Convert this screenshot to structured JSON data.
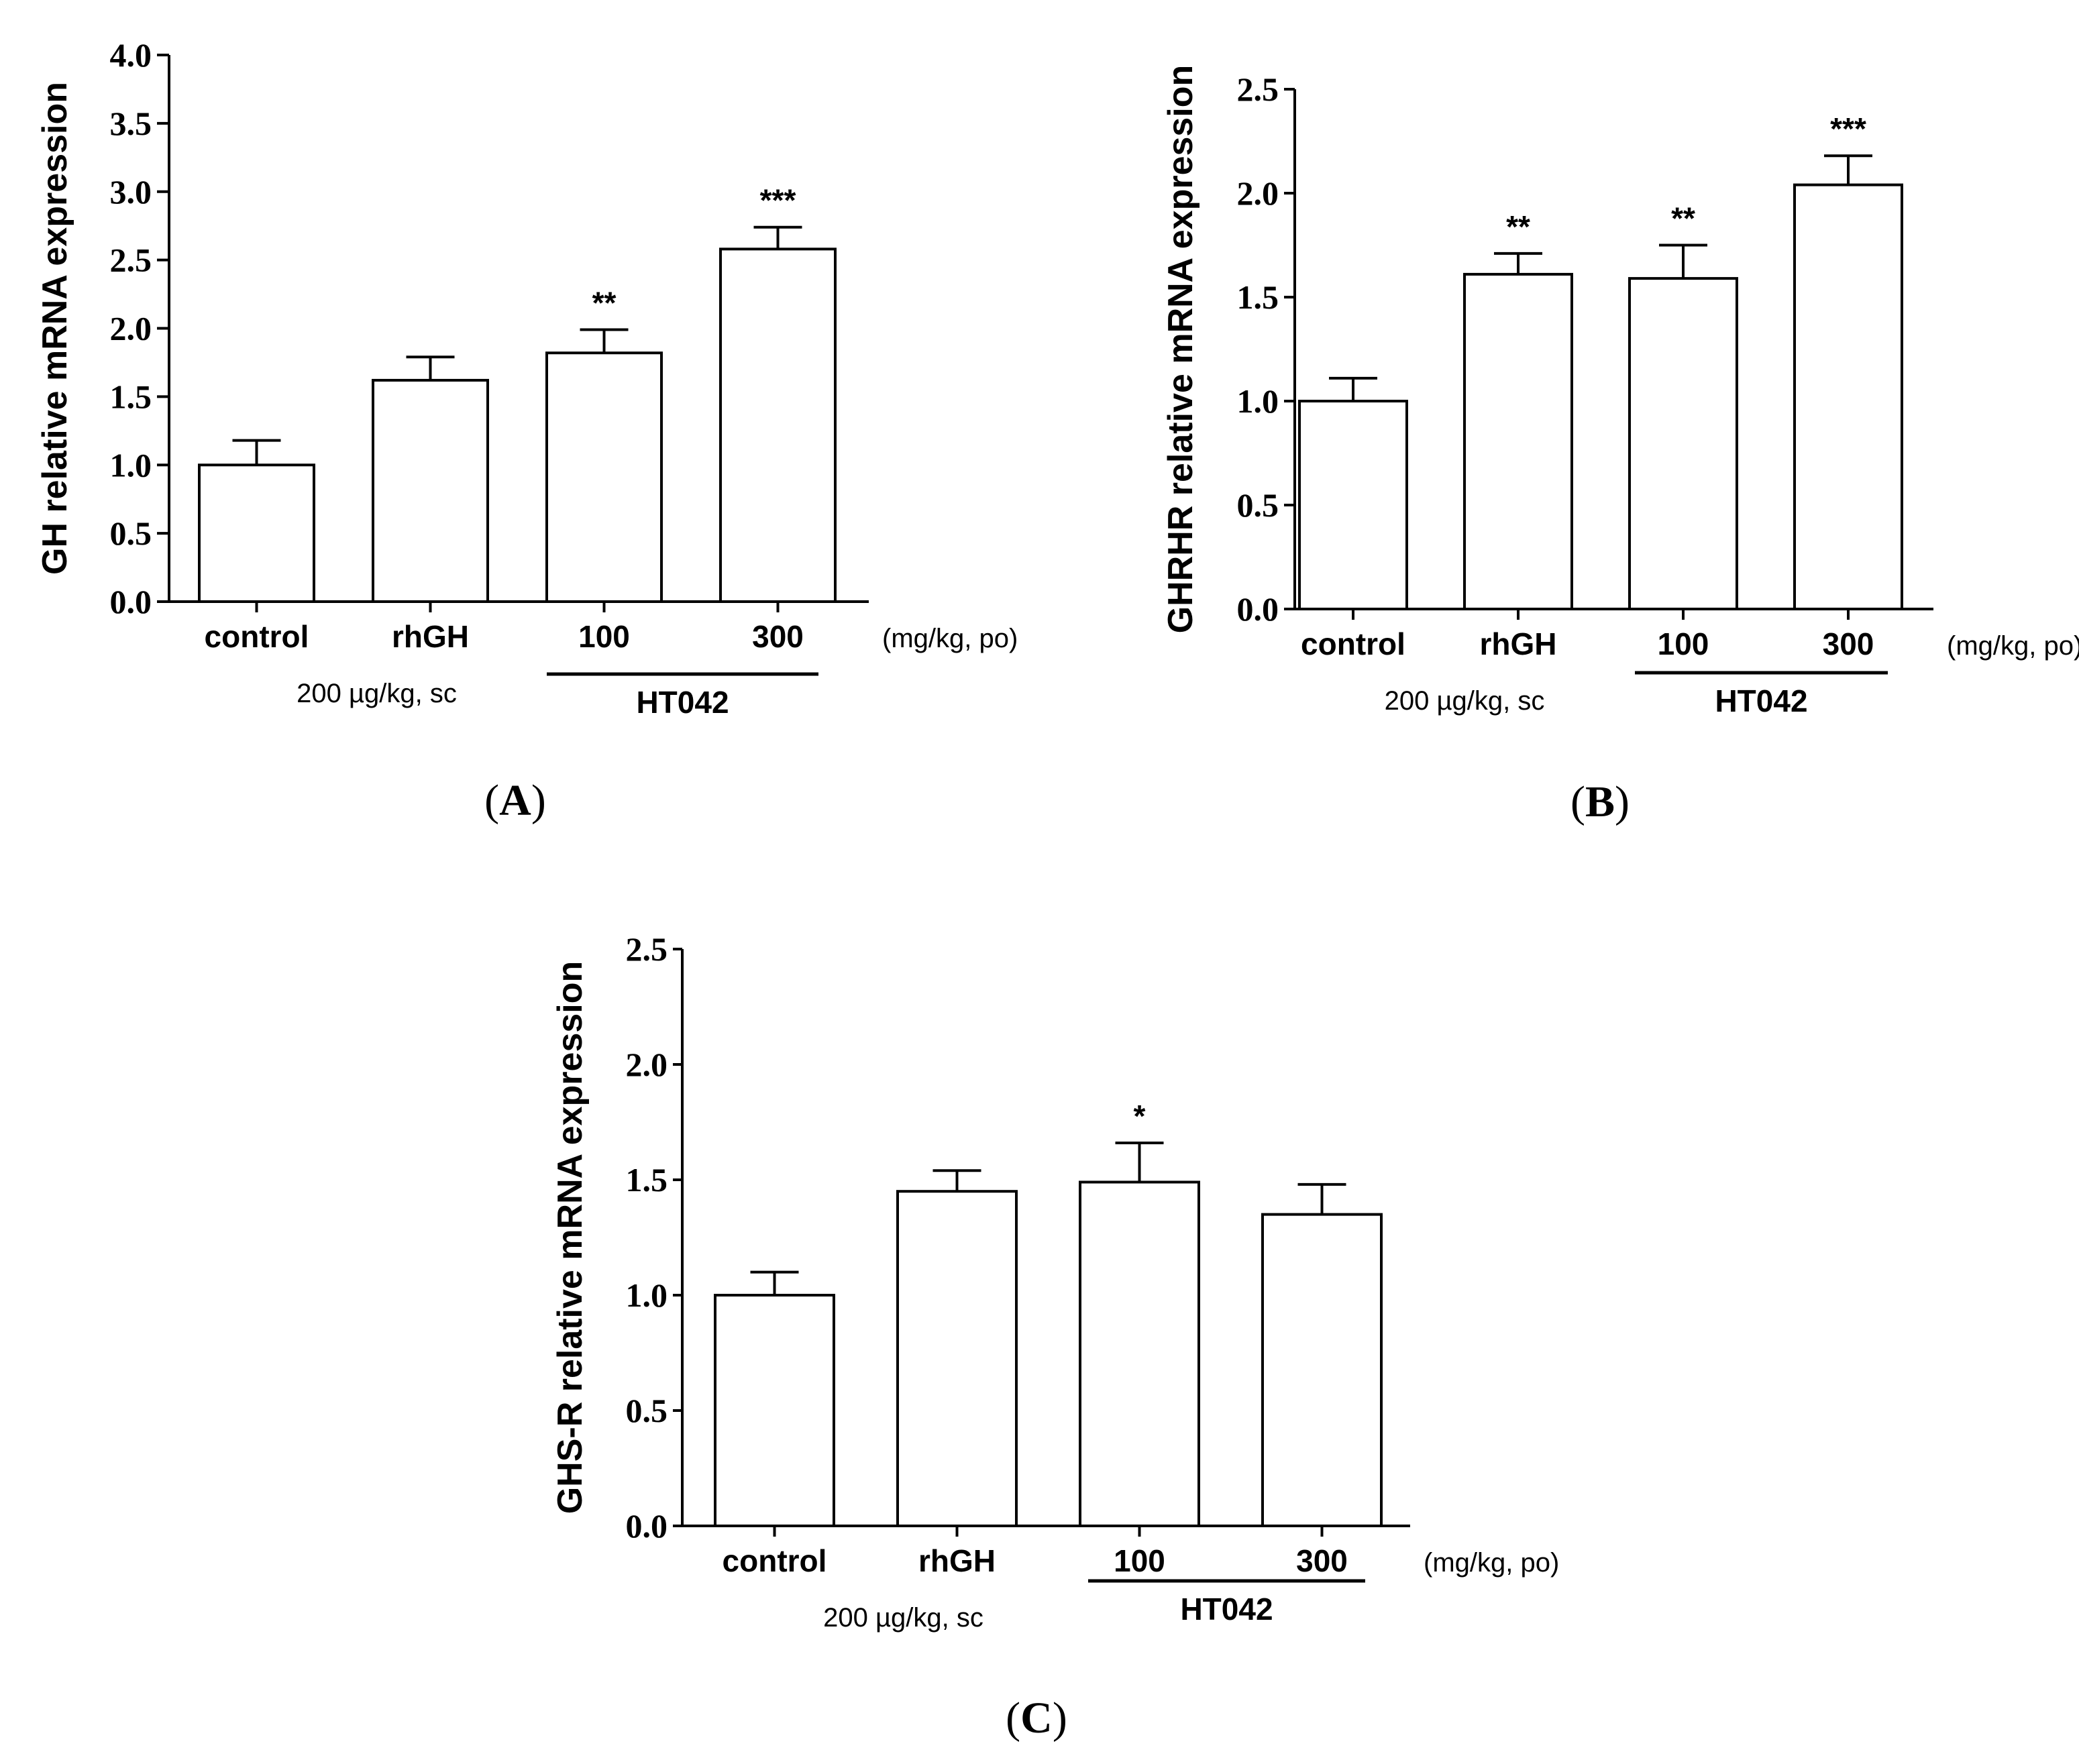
{
  "figure": {
    "dose_unit": "(mg/kg, po)",
    "rhgh_dose": "200 µg/kg, sc",
    "group_label": "HT042"
  },
  "chart_data": [
    {
      "type": "bar",
      "panel": "A",
      "panel_label": "(A)",
      "panel_letter": "A",
      "ylabel": "GH relative mRNA expression",
      "ylim": [
        0,
        4.0
      ],
      "yticks": [
        "0.0",
        "0.5",
        "1.0",
        "1.5",
        "2.0",
        "2.5",
        "3.0",
        "3.5",
        "4.0"
      ],
      "categories": [
        "control",
        "rhGH",
        "100",
        "300"
      ],
      "values": [
        1.0,
        1.62,
        1.82,
        2.58
      ],
      "errors": [
        0.18,
        0.17,
        0.17,
        0.16
      ],
      "significance": [
        "",
        "",
        "**",
        "***"
      ]
    },
    {
      "type": "bar",
      "panel": "B",
      "panel_label": "(B)",
      "panel_letter": "B",
      "ylabel": "GHRHR relative mRNA expression",
      "ylim": [
        0,
        2.5
      ],
      "yticks": [
        "0.0",
        "0.5",
        "1.0",
        "1.5",
        "2.0",
        "2.5"
      ],
      "categories": [
        "control",
        "rhGH",
        "100",
        "300"
      ],
      "values": [
        1.0,
        1.61,
        1.59,
        2.04
      ],
      "errors": [
        0.11,
        0.1,
        0.16,
        0.14
      ],
      "significance": [
        "",
        "**",
        "**",
        "***"
      ]
    },
    {
      "type": "bar",
      "panel": "C",
      "panel_label": "(C)",
      "panel_letter": "C",
      "ylabel": "GHS-R relative mRNA expression",
      "ylim": [
        0,
        2.5
      ],
      "yticks": [
        "0.0",
        "0.5",
        "1.0",
        "1.5",
        "2.0",
        "2.5"
      ],
      "categories": [
        "control",
        "rhGH",
        "100",
        "300"
      ],
      "values": [
        1.0,
        1.45,
        1.49,
        1.35
      ],
      "errors": [
        0.1,
        0.09,
        0.17,
        0.13
      ],
      "significance": [
        "",
        "",
        "*",
        ""
      ]
    }
  ]
}
